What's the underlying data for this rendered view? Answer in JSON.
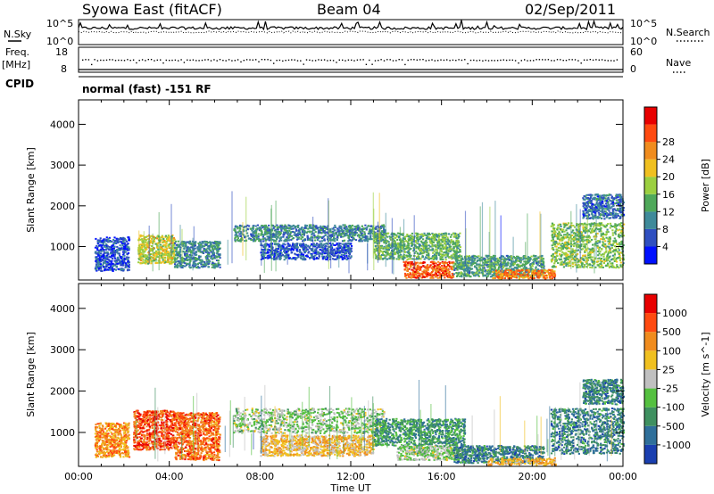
{
  "header": {
    "title": "Syowa East (fitACF)",
    "beam": "Beam 04",
    "date": "02/Sep/2011"
  },
  "summary_panels": {
    "nsky_label": "N.Sky",
    "nsearch_label": "N.Search",
    "freq_label_1": "Freq.",
    "freq_label_2": "[MHz]",
    "nave_label": "Nave",
    "cpid_label": "CPID",
    "noise_ticks": [
      "10^5",
      "10^0"
    ],
    "freq_ticks": [
      "18",
      "8"
    ],
    "nave_ticks": [
      "60",
      "0"
    ],
    "cpid_text": "normal (fast) -151 RF"
  },
  "chart_data": [
    {
      "type": "heatmap",
      "name": "power-panel",
      "ylabel": "Slant Range [km]",
      "yticks": [
        "1000",
        "2000",
        "3000",
        "4000"
      ],
      "ylim": [
        180,
        4600
      ],
      "xlim": [
        0,
        24
      ],
      "colorbar": {
        "label": "Power [dB]",
        "ticks": [
          "4",
          "8",
          "12",
          "16",
          "20",
          "24",
          "28"
        ],
        "colors": [
          "#0010ff",
          "#2f4fc0",
          "#3f8a9a",
          "#4fa85a",
          "#9bcf40",
          "#f0c020",
          "#f08c1e",
          "#ff4a10",
          "#e80000"
        ]
      },
      "regions": [
        {
          "t": [
            0.7,
            2.2
          ],
          "r": [
            420,
            1250
          ],
          "level": 0.15
        },
        {
          "t": [
            2.6,
            4.2
          ],
          "r": [
            600,
            1300
          ],
          "level": 0.55
        },
        {
          "t": [
            4.2,
            6.2
          ],
          "r": [
            500,
            1150
          ],
          "level": 0.3
        },
        {
          "t": [
            6.8,
            13.5
          ],
          "r": [
            1150,
            1550
          ],
          "level": 0.28
        },
        {
          "t": [
            8.0,
            12.0
          ],
          "r": [
            700,
            1100
          ],
          "level": 0.18
        },
        {
          "t": [
            13.0,
            16.8
          ],
          "r": [
            700,
            1350
          ],
          "level": 0.4
        },
        {
          "t": [
            14.3,
            16.5
          ],
          "r": [
            250,
            650
          ],
          "level": 0.82
        },
        {
          "t": [
            16.5,
            20.5
          ],
          "r": [
            280,
            800
          ],
          "level": 0.35
        },
        {
          "t": [
            18.2,
            21.0
          ],
          "r": [
            230,
            450
          ],
          "level": 0.75
        },
        {
          "t": [
            20.8,
            24.0
          ],
          "r": [
            500,
            1600
          ],
          "level": 0.45
        },
        {
          "t": [
            22.2,
            24.0
          ],
          "r": [
            1700,
            2300
          ],
          "level": 0.22
        }
      ]
    },
    {
      "type": "heatmap",
      "name": "velocity-panel",
      "ylabel": "Slant Range [km]",
      "xlabel": "Time UT",
      "yticks": [
        "1000",
        "2000",
        "3000",
        "4000"
      ],
      "xticks": [
        "00:00",
        "04:00",
        "08:00",
        "12:00",
        "16:00",
        "20:00",
        "00:00"
      ],
      "ylim": [
        180,
        4600
      ],
      "xlim": [
        0,
        24
      ],
      "colorbar": {
        "label": "Velocity [m s^-1]",
        "ticks": [
          "1000",
          "500",
          "100",
          "25",
          "-25",
          "-100",
          "-500",
          "-1000"
        ],
        "colors": [
          "#1a3fb0",
          "#2f6f9a",
          "#3f9060",
          "#55c040",
          "#c0c0c0",
          "#f0c020",
          "#f08c1e",
          "#ff4a10",
          "#e80000"
        ]
      },
      "regions": [
        {
          "t": [
            0.7,
            2.2
          ],
          "r": [
            420,
            1250
          ],
          "level": 0.72
        },
        {
          "t": [
            2.4,
            4.2
          ],
          "r": [
            600,
            1550
          ],
          "level": 0.84
        },
        {
          "t": [
            4.2,
            6.2
          ],
          "r": [
            350,
            1500
          ],
          "level": 0.78
        },
        {
          "t": [
            6.8,
            13.5
          ],
          "r": [
            1000,
            1600
          ],
          "level": 0.44
        },
        {
          "t": [
            8.0,
            13.0
          ],
          "r": [
            450,
            950
          ],
          "level": 0.62
        },
        {
          "t": [
            13.0,
            17.0
          ],
          "r": [
            700,
            1350
          ],
          "level": 0.28
        },
        {
          "t": [
            14.0,
            17.0
          ],
          "r": [
            350,
            700
          ],
          "level": 0.44
        },
        {
          "t": [
            16.5,
            20.5
          ],
          "r": [
            280,
            700
          ],
          "level": 0.22
        },
        {
          "t": [
            18.0,
            21.0
          ],
          "r": [
            230,
            400
          ],
          "level": 0.64
        },
        {
          "t": [
            20.8,
            24.0
          ],
          "r": [
            500,
            1600
          ],
          "level": 0.22
        },
        {
          "t": [
            22.2,
            24.0
          ],
          "r": [
            1700,
            2300
          ],
          "level": 0.22
        }
      ]
    }
  ]
}
